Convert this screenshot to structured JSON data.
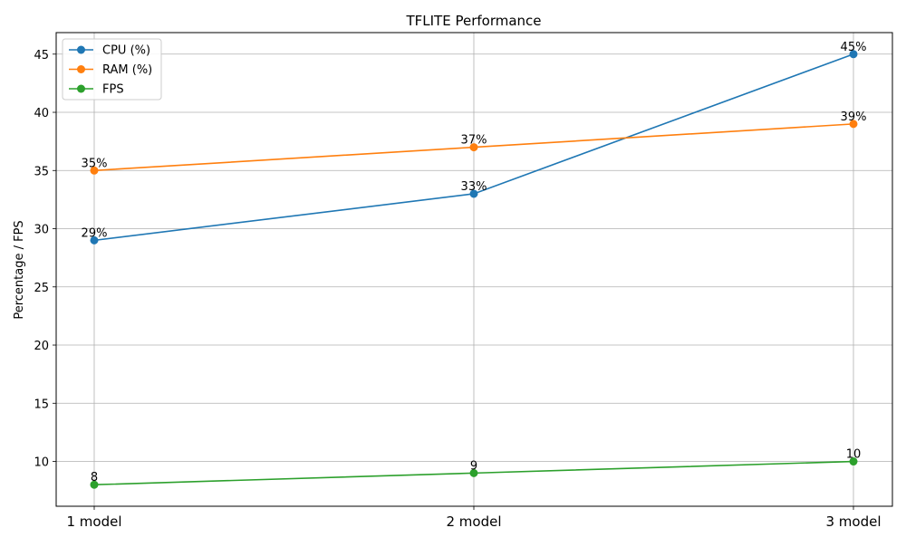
{
  "chart_data": {
    "type": "line",
    "title": "TFLITE Performance",
    "xlabel": "",
    "ylabel": "Percentage / FPS",
    "categories": [
      "1 model",
      "2 model",
      "3 model"
    ],
    "ylim": [
      6.15,
      46.85
    ],
    "yticks": [
      10,
      15,
      20,
      25,
      30,
      35,
      40,
      45
    ],
    "grid": true,
    "legend_position": "top-left",
    "series": [
      {
        "name": "CPU (%)",
        "values": [
          29,
          33,
          45
        ],
        "labels": [
          "29%",
          "33%",
          "45%"
        ],
        "color": "#1f77b4"
      },
      {
        "name": "RAM (%)",
        "values": [
          35,
          37,
          39
        ],
        "labels": [
          "35%",
          "37%",
          "39%"
        ],
        "color": "#ff7f0e"
      },
      {
        "name": "FPS",
        "values": [
          8,
          9,
          10
        ],
        "labels": [
          "8",
          "9",
          "10"
        ],
        "color": "#2ca02c"
      }
    ]
  }
}
